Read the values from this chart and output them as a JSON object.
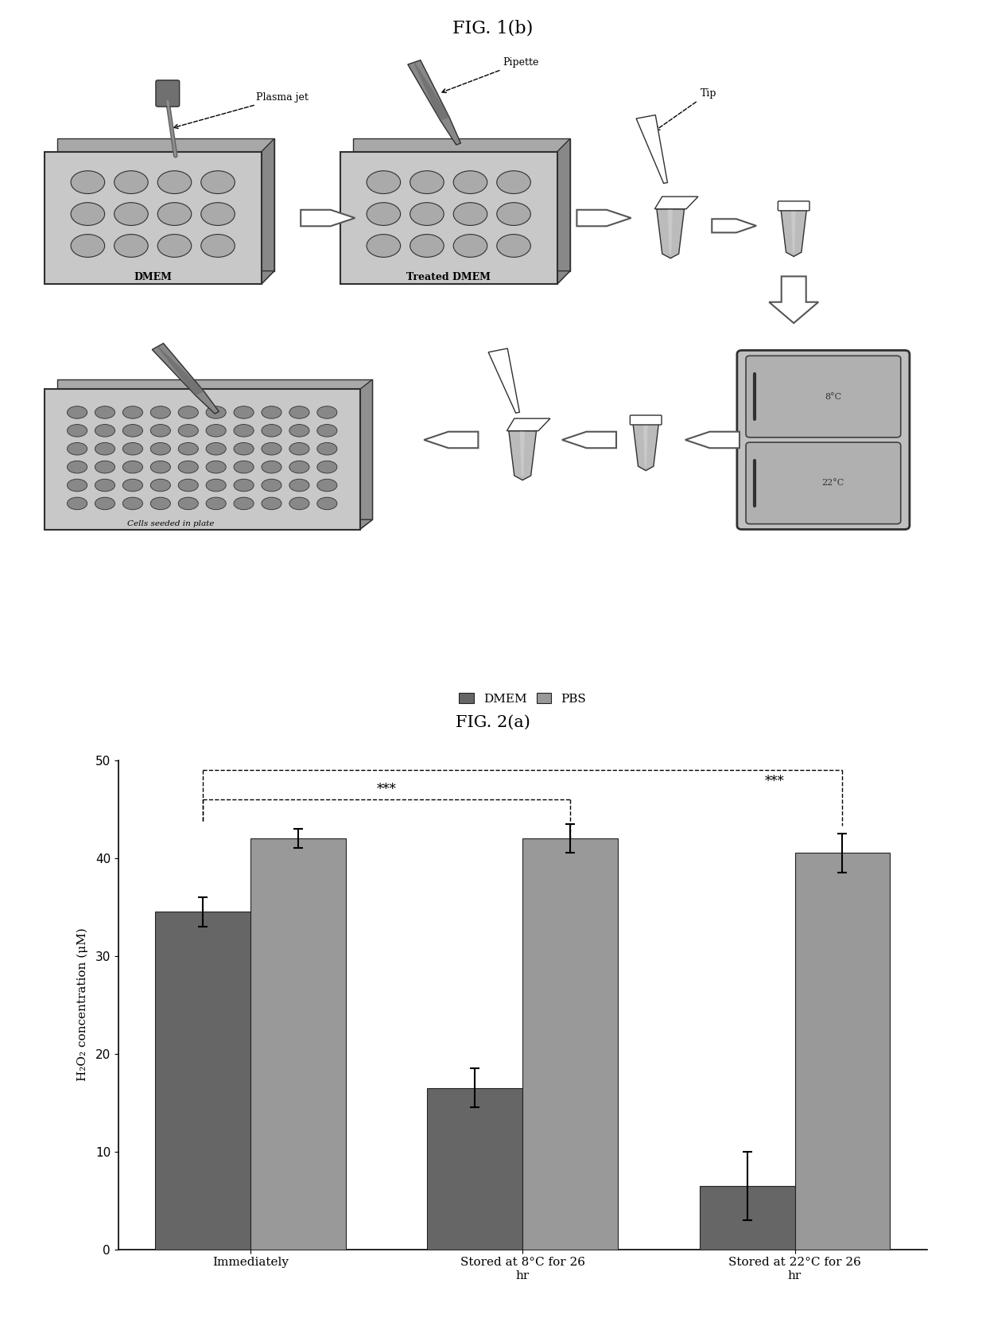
{
  "fig1b_title": "FIG. 1(b)",
  "fig2a_title": "FIG. 2(a)",
  "bar_categories": [
    "Immediately",
    "Stored at 8°C for 26\nhr",
    "Stored at 22°C for 26\nhr"
  ],
  "dmem_values": [
    34.5,
    16.5,
    6.5
  ],
  "pbs_values": [
    42.0,
    42.0,
    40.5
  ],
  "dmem_errors": [
    1.5,
    2.0,
    3.5
  ],
  "pbs_errors": [
    1.0,
    1.5,
    2.0
  ],
  "dmem_color": "#666666",
  "pbs_color": "#999999",
  "ylabel": "H₂O₂ concentration (μM)",
  "ylim": [
    0,
    50
  ],
  "yticks": [
    0,
    10,
    20,
    30,
    40,
    50
  ],
  "legend_labels": [
    "DMEM",
    "PBS"
  ],
  "sig_label": "***",
  "bar_width": 0.35,
  "background_color": "#ffffff",
  "plate_color": "#c8c8c8",
  "well_color": "#aaaaaa",
  "plate_shadow": "#aaaaaa",
  "eppendorf_color": "#b8b8b8"
}
